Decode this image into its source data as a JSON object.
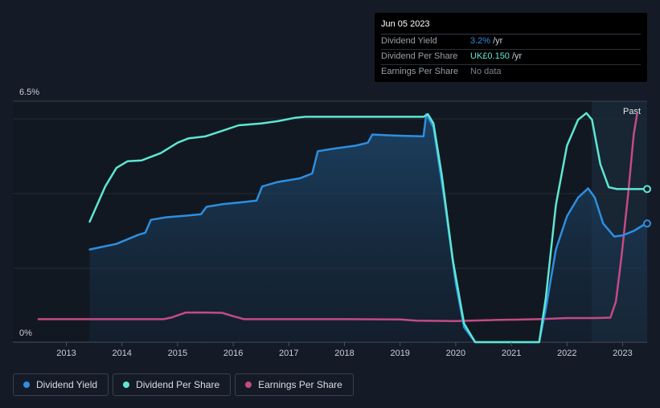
{
  "chart_data": {
    "type": "line",
    "y_axis": {
      "top_label": "6.5%",
      "bottom_label": "0%",
      "range_pct": [
        0,
        6.5
      ]
    },
    "x_ticks": [
      "2013",
      "2014",
      "2015",
      "2016",
      "2017",
      "2018",
      "2019",
      "2020",
      "2021",
      "2022",
      "2023"
    ],
    "past_label": "Past",
    "series": [
      {
        "name": "Dividend Yield",
        "unit": "%",
        "color": "#2d8fe0",
        "points": [
          [
            2013.42,
            2.5
          ],
          [
            2013.9,
            2.65
          ],
          [
            2014.3,
            2.9
          ],
          [
            2014.42,
            2.95
          ],
          [
            2014.52,
            3.3
          ],
          [
            2014.8,
            3.37
          ],
          [
            2015.2,
            3.42
          ],
          [
            2015.42,
            3.45
          ],
          [
            2015.52,
            3.65
          ],
          [
            2015.8,
            3.72
          ],
          [
            2016.2,
            3.78
          ],
          [
            2016.42,
            3.82
          ],
          [
            2016.52,
            4.2
          ],
          [
            2016.8,
            4.32
          ],
          [
            2017.2,
            4.42
          ],
          [
            2017.42,
            4.55
          ],
          [
            2017.52,
            5.15
          ],
          [
            2017.8,
            5.22
          ],
          [
            2018.2,
            5.3
          ],
          [
            2018.42,
            5.38
          ],
          [
            2018.5,
            5.6
          ],
          [
            2018.8,
            5.58
          ],
          [
            2019.2,
            5.56
          ],
          [
            2019.42,
            5.55
          ],
          [
            2019.47,
            6.15
          ],
          [
            2019.6,
            5.8
          ],
          [
            2019.8,
            3.8
          ],
          [
            2020.0,
            1.6
          ],
          [
            2020.15,
            0.4
          ],
          [
            2020.35,
            0
          ],
          [
            2021.2,
            0
          ],
          [
            2021.5,
            0
          ],
          [
            2021.62,
            0.9
          ],
          [
            2021.8,
            2.5
          ],
          [
            2022.0,
            3.4
          ],
          [
            2022.2,
            3.9
          ],
          [
            2022.38,
            4.15
          ],
          [
            2022.5,
            3.9
          ],
          [
            2022.65,
            3.2
          ],
          [
            2022.85,
            2.85
          ],
          [
            2023.0,
            2.88
          ],
          [
            2023.2,
            3.0
          ],
          [
            2023.42,
            3.2
          ]
        ]
      },
      {
        "name": "Dividend Per Share",
        "unit": "GBP",
        "color": "#5ee6d2",
        "points": [
          [
            2013.42,
            3.25
          ],
          [
            2013.7,
            4.2
          ],
          [
            2013.9,
            4.7
          ],
          [
            2014.1,
            4.88
          ],
          [
            2014.35,
            4.9
          ],
          [
            2014.7,
            5.1
          ],
          [
            2015.0,
            5.38
          ],
          [
            2015.2,
            5.5
          ],
          [
            2015.5,
            5.55
          ],
          [
            2015.8,
            5.7
          ],
          [
            2016.1,
            5.85
          ],
          [
            2016.5,
            5.9
          ],
          [
            2016.8,
            5.96
          ],
          [
            2017.1,
            6.05
          ],
          [
            2017.3,
            6.08
          ],
          [
            2018.0,
            6.08
          ],
          [
            2018.8,
            6.08
          ],
          [
            2019.42,
            6.08
          ],
          [
            2019.5,
            6.15
          ],
          [
            2019.6,
            5.9
          ],
          [
            2019.75,
            4.5
          ],
          [
            2019.95,
            2.2
          ],
          [
            2020.15,
            0.5
          ],
          [
            2020.35,
            0
          ],
          [
            2021.2,
            0
          ],
          [
            2021.5,
            0
          ],
          [
            2021.62,
            1.2
          ],
          [
            2021.8,
            3.7
          ],
          [
            2022.0,
            5.3
          ],
          [
            2022.2,
            6.0
          ],
          [
            2022.35,
            6.18
          ],
          [
            2022.45,
            6.0
          ],
          [
            2022.6,
            4.8
          ],
          [
            2022.75,
            4.18
          ],
          [
            2022.9,
            4.13
          ],
          [
            2023.42,
            4.13
          ]
        ]
      },
      {
        "name": "Earnings Per Share",
        "unit": "GBP",
        "color": "#c44a86",
        "points": [
          [
            2012.5,
            0.62
          ],
          [
            2013.4,
            0.62
          ],
          [
            2014.0,
            0.62
          ],
          [
            2014.75,
            0.62
          ],
          [
            2014.9,
            0.67
          ],
          [
            2015.15,
            0.8
          ],
          [
            2015.5,
            0.8
          ],
          [
            2015.8,
            0.79
          ],
          [
            2016.0,
            0.7
          ],
          [
            2016.2,
            0.62
          ],
          [
            2017.0,
            0.62
          ],
          [
            2018.0,
            0.62
          ],
          [
            2019.0,
            0.61
          ],
          [
            2019.3,
            0.58
          ],
          [
            2020.0,
            0.57
          ],
          [
            2020.8,
            0.6
          ],
          [
            2021.5,
            0.62
          ],
          [
            2022.0,
            0.65
          ],
          [
            2022.5,
            0.65
          ],
          [
            2022.78,
            0.66
          ],
          [
            2022.88,
            1.1
          ],
          [
            2022.98,
            2.3
          ],
          [
            2023.1,
            4.0
          ],
          [
            2023.2,
            5.6
          ],
          [
            2023.26,
            6.15
          ]
        ]
      }
    ]
  },
  "tooltip": {
    "date": "Jun 05 2023",
    "rows": [
      {
        "label": "Dividend Yield",
        "value": "3.2%",
        "unit": "/yr",
        "color": "#2d8fe0"
      },
      {
        "label": "Dividend Per Share",
        "value": "UK£0.150",
        "unit": "/yr",
        "color": "#5ee6d2"
      },
      {
        "label": "Earnings Per Share",
        "value": "No data",
        "unit": "",
        "color": "#7c828c"
      }
    ]
  },
  "legend": [
    {
      "label": "Dividend Yield",
      "color": "#2d8fe0"
    },
    {
      "label": "Dividend Per Share",
      "color": "#5ee6d2"
    },
    {
      "label": "Earnings Per Share",
      "color": "#c44a86"
    }
  ]
}
